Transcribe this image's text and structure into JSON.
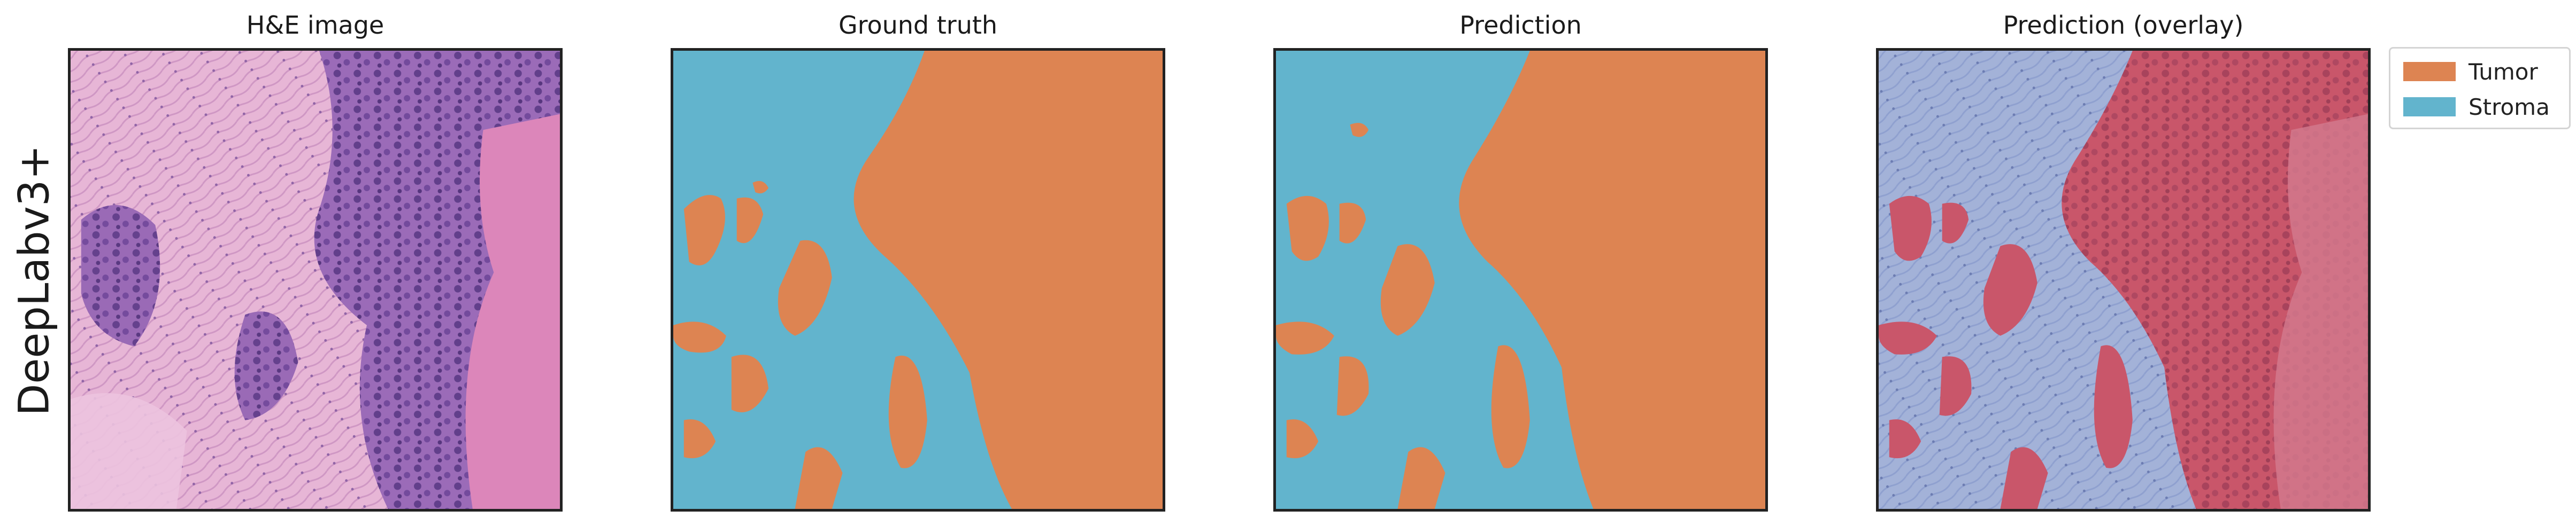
{
  "row_label": "DeepLabv3+",
  "panels": [
    {
      "title": "H&E image"
    },
    {
      "title": "Ground truth"
    },
    {
      "title": "Prediction"
    },
    {
      "title": "Prediction (overlay)"
    }
  ],
  "legend": [
    {
      "label": "Tumor",
      "color": "#dd8452"
    },
    {
      "label": "Stroma",
      "color": "#62b4cd"
    }
  ],
  "colors": {
    "he_pink": "#e8a9d0",
    "he_purple": "#7d4e9e",
    "overlay_red": "#c9566a",
    "overlay_blue": "#a3b2d8"
  }
}
